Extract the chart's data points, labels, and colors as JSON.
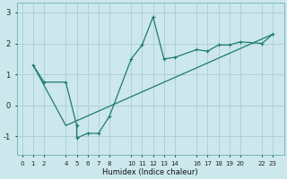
{
  "xlabel": "Humidex (Indice chaleur)",
  "background_color": "#cce8ec",
  "grid_color": "#aacdd4",
  "line_color": "#1e7a70",
  "line1_x": [
    1,
    2,
    4,
    5,
    5,
    6,
    7,
    8,
    10,
    11,
    12,
    13,
    14,
    16,
    17,
    18,
    19,
    20,
    22,
    23
  ],
  "line1_y": [
    1.3,
    0.75,
    0.75,
    -0.65,
    -1.05,
    -0.9,
    -0.9,
    -0.35,
    1.5,
    1.95,
    2.85,
    1.5,
    1.55,
    1.8,
    1.75,
    1.95,
    1.95,
    2.05,
    2.0,
    2.3
  ],
  "line2_x": [
    1,
    4,
    23
  ],
  "line2_y": [
    1.3,
    -0.65,
    2.3
  ],
  "xlim": [
    -0.5,
    24
  ],
  "ylim": [
    -1.6,
    3.3
  ],
  "yticks": [
    -1,
    0,
    1,
    2,
    3
  ],
  "xtick_labels": [
    "0",
    "1",
    "2",
    "4",
    "5",
    "6",
    "7",
    "8",
    "10",
    "11",
    "12",
    "13",
    "14",
    "16",
    "17",
    "18",
    "19",
    "20",
    "22",
    "23"
  ],
  "xtick_pos": [
    0,
    1,
    2,
    4,
    5,
    6,
    7,
    8,
    10,
    11,
    12,
    13,
    14,
    16,
    17,
    18,
    19,
    20,
    22,
    23
  ],
  "figsize": [
    3.2,
    2.0
  ],
  "dpi": 100
}
